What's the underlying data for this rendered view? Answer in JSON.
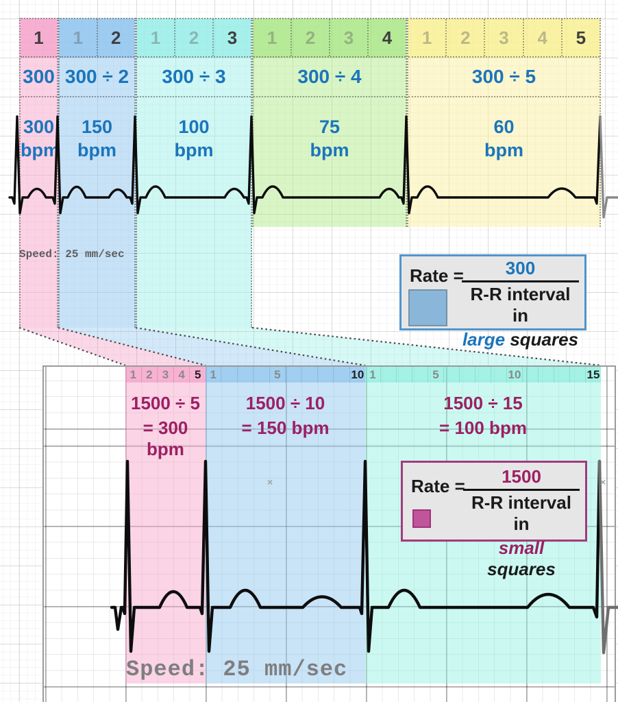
{
  "colors": {
    "accent_blue_text": "#1B75BC",
    "accent_maroon_text": "#9C2063",
    "band_pink": "#F7B8D4",
    "band_blue": "#A9D3F0",
    "band_teal": "#B3F0EC",
    "band_green": "#B8EBA1",
    "band_yellow": "#FBF3A8",
    "rate_box_blue_border": "#4E94CE",
    "rate_box_maroon_border": "#A33A7D"
  },
  "top": {
    "bands": [
      {
        "name": "pink",
        "large_squares": 1,
        "cells": [
          {
            "label": "1",
            "strong": true
          }
        ],
        "formula": "300",
        "bpm": "300",
        "unit": "bpm"
      },
      {
        "name": "blue",
        "large_squares": 2,
        "cells": [
          {
            "label": "1"
          },
          {
            "label": "2",
            "strong": true
          }
        ],
        "formula": "300 ÷ 2",
        "bpm": "150",
        "unit": "bpm"
      },
      {
        "name": "teal",
        "large_squares": 3,
        "cells": [
          {
            "label": "1"
          },
          {
            "label": "2"
          },
          {
            "label": "3",
            "strong": true
          }
        ],
        "formula": "300 ÷ 3",
        "bpm": "100",
        "unit": "bpm"
      },
      {
        "name": "green",
        "large_squares": 4,
        "cells": [
          {
            "label": "1"
          },
          {
            "label": "2"
          },
          {
            "label": "3"
          },
          {
            "label": "4",
            "strong": true
          }
        ],
        "formula": "300 ÷ 4",
        "bpm": "75",
        "unit": "bpm"
      },
      {
        "name": "yellow",
        "large_squares": 5,
        "cells": [
          {
            "label": "1"
          },
          {
            "label": "2"
          },
          {
            "label": "3"
          },
          {
            "label": "4"
          },
          {
            "label": "5",
            "strong": true
          }
        ],
        "formula": "300 ÷ 5",
        "bpm": "60",
        "unit": "bpm"
      }
    ],
    "speed": "Speed: 25 mm/sec",
    "rate_box": {
      "lhs": "Rate =",
      "numerator": "300",
      "den": "R-R interval in",
      "den_em": "large",
      "den_rest": "squares"
    }
  },
  "bottom": {
    "strips": [
      {
        "name": "pink",
        "small_squares": 5,
        "cells": [
          {
            "label": "1"
          },
          {
            "label": "2"
          },
          {
            "label": "3"
          },
          {
            "label": "4"
          },
          {
            "label": "5",
            "strong": true
          }
        ],
        "formula": "1500 ÷ 5",
        "result": "= 300 bpm"
      },
      {
        "name": "blue",
        "small_squares": 10,
        "cells": [
          {
            "label": "1"
          },
          {},
          {},
          {},
          {
            "label": "5"
          },
          {},
          {},
          {},
          {},
          {
            "label": "10",
            "strong": true
          }
        ],
        "formula": "1500 ÷ 10",
        "result": "= 150 bpm"
      },
      {
        "name": "teal",
        "small_squares": 15,
        "cells": [
          {
            "label": "1"
          },
          {},
          {},
          {},
          {
            "label": "5"
          },
          {},
          {},
          {},
          {},
          {
            "label": "10"
          },
          {},
          {},
          {},
          {},
          {
            "label": "15",
            "strong": true
          }
        ],
        "formula": "1500 ÷ 15",
        "result": "= 100 bpm"
      }
    ],
    "speed": "Speed: 25 mm/sec",
    "rate_box": {
      "lhs": "Rate =",
      "numerator": "1500",
      "den": "R-R interval in",
      "den_em": "small",
      "den_rest": "squares"
    },
    "artifact_mark": "×"
  }
}
